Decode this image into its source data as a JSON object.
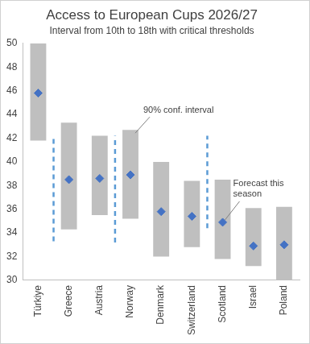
{
  "chart_data": {
    "type": "bar",
    "title": "Access to European Cups 2026/27",
    "subtitle": "Interval from 10th to 18th with critical thresholds",
    "categories": [
      "Türkiye",
      "Greece",
      "Austria",
      "Norway",
      "Denmark",
      "Switzerland",
      "Scotland",
      "Israel",
      "Poland"
    ],
    "series": [
      {
        "type": "bar",
        "color": "#bfbfbf",
        "values": [
          [
            41.8,
            50
          ],
          [
            34.3,
            43.3
          ],
          [
            35.5,
            42.2
          ],
          [
            35.2,
            42.7
          ],
          [
            32.0,
            40.0
          ],
          [
            32.8,
            38.4
          ],
          [
            31.8,
            38.5
          ],
          [
            31.2,
            36.1
          ],
          [
            30.0,
            36.2
          ]
        ]
      },
      {
        "type": "scatter",
        "marker": "diamond",
        "color": "#4472c4",
        "values": [
          45.8,
          38.5,
          38.6,
          38.9,
          35.8,
          35.4,
          34.9,
          32.9,
          33.0
        ]
      }
    ],
    "thresholds": [
      {
        "after": "Türkiye",
        "low": 33.3,
        "high": 42.2,
        "color": "#5b9bd5",
        "line_style": "dashed"
      },
      {
        "after": "Austria",
        "low": 33.2,
        "high": 42.2,
        "color": "#5b9bd5",
        "line_style": "dashed"
      },
      {
        "after": "Switzerland",
        "low": 34.4,
        "high": 42.2,
        "color": "#5b9bd5",
        "line_style": "dashed"
      }
    ],
    "annotations": [
      {
        "text": "90% conf. interval",
        "category": "Norway",
        "points_to": "interval"
      },
      {
        "text": "Forecast this season",
        "category": "Scotland",
        "points_to": "forecast"
      }
    ],
    "ylim": [
      30,
      50
    ],
    "yticks": [
      30,
      32,
      34,
      36,
      38,
      40,
      42,
      44,
      46,
      48,
      50
    ],
    "grid": false
  }
}
